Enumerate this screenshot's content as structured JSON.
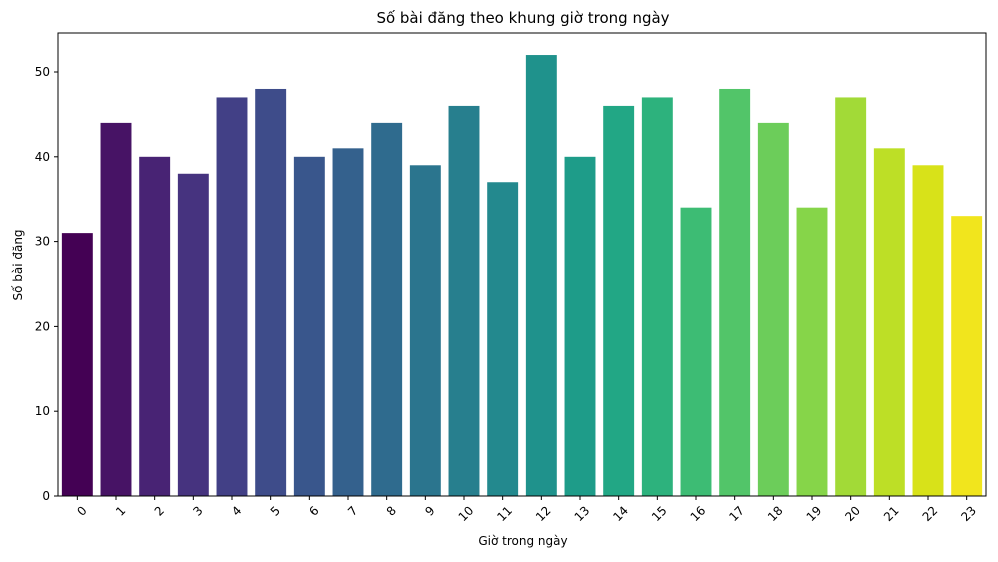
{
  "chart_data": {
    "type": "bar",
    "title": "Số bài đăng theo khung giờ trong ngày",
    "xlabel": "Giờ trong ngày",
    "ylabel": "Số bài đăng",
    "categories": [
      "0",
      "1",
      "2",
      "3",
      "4",
      "5",
      "6",
      "7",
      "8",
      "9",
      "10",
      "11",
      "12",
      "13",
      "14",
      "15",
      "16",
      "17",
      "18",
      "19",
      "20",
      "21",
      "22",
      "23"
    ],
    "values": [
      31,
      44,
      40,
      38,
      47,
      48,
      40,
      41,
      44,
      39,
      46,
      37,
      52,
      40,
      46,
      47,
      34,
      48,
      44,
      34,
      47,
      41,
      39,
      33
    ],
    "ylim": [
      0,
      54.6
    ],
    "yticks": [
      0,
      10,
      20,
      30,
      40,
      50
    ],
    "grid": false,
    "legend": "none",
    "x_tick_rotation": 45,
    "colors": [
      "#440154",
      "#471365",
      "#482374",
      "#46337f",
      "#424086",
      "#3e4c8a",
      "#39568c",
      "#34618d",
      "#2f6b8e",
      "#2b758e",
      "#277f8e",
      "#23898e",
      "#1f928c",
      "#1e9c89",
      "#22a785",
      "#2db27d",
      "#3dbc74",
      "#52c569",
      "#6ccd5a",
      "#86d549",
      "#a2da37",
      "#bddf26",
      "#d8e219",
      "#f1e51d"
    ]
  }
}
